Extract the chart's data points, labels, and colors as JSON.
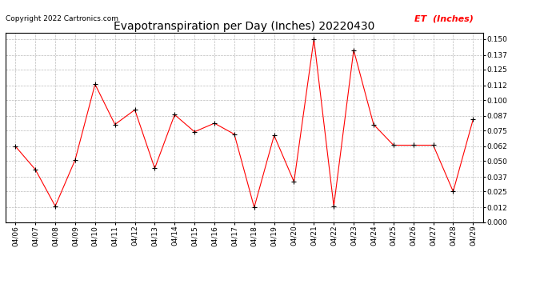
{
  "title": "Evapotranspiration per Day (Inches) 20220430",
  "copyright": "Copyright 2022 Cartronics.com",
  "legend_label": "ET  (Inches)",
  "dates": [
    "04/06",
    "04/07",
    "04/08",
    "04/09",
    "04/10",
    "04/11",
    "04/12",
    "04/13",
    "04/14",
    "04/15",
    "04/16",
    "04/17",
    "04/18",
    "04/19",
    "04/20",
    "04/21",
    "04/22",
    "04/23",
    "04/24",
    "04/25",
    "04/26",
    "04/27",
    "04/28",
    "04/29"
  ],
  "values": [
    0.062,
    0.043,
    0.013,
    0.051,
    0.113,
    0.08,
    0.092,
    0.044,
    0.088,
    0.074,
    0.081,
    0.072,
    0.012,
    0.071,
    0.033,
    0.15,
    0.013,
    0.141,
    0.08,
    0.063,
    0.063,
    0.063,
    0.025,
    0.084
  ],
  "ylim": [
    0.0,
    0.155
  ],
  "yticks": [
    0.0,
    0.012,
    0.025,
    0.037,
    0.05,
    0.062,
    0.075,
    0.087,
    0.1,
    0.112,
    0.125,
    0.137,
    0.15
  ],
  "line_color": "red",
  "marker_color": "black",
  "grid_color": "#bbbbbb",
  "bg_color": "white",
  "title_fontsize": 10,
  "copyright_fontsize": 6.5,
  "legend_fontsize": 8,
  "tick_fontsize": 6.5,
  "axis_label_color": "black"
}
